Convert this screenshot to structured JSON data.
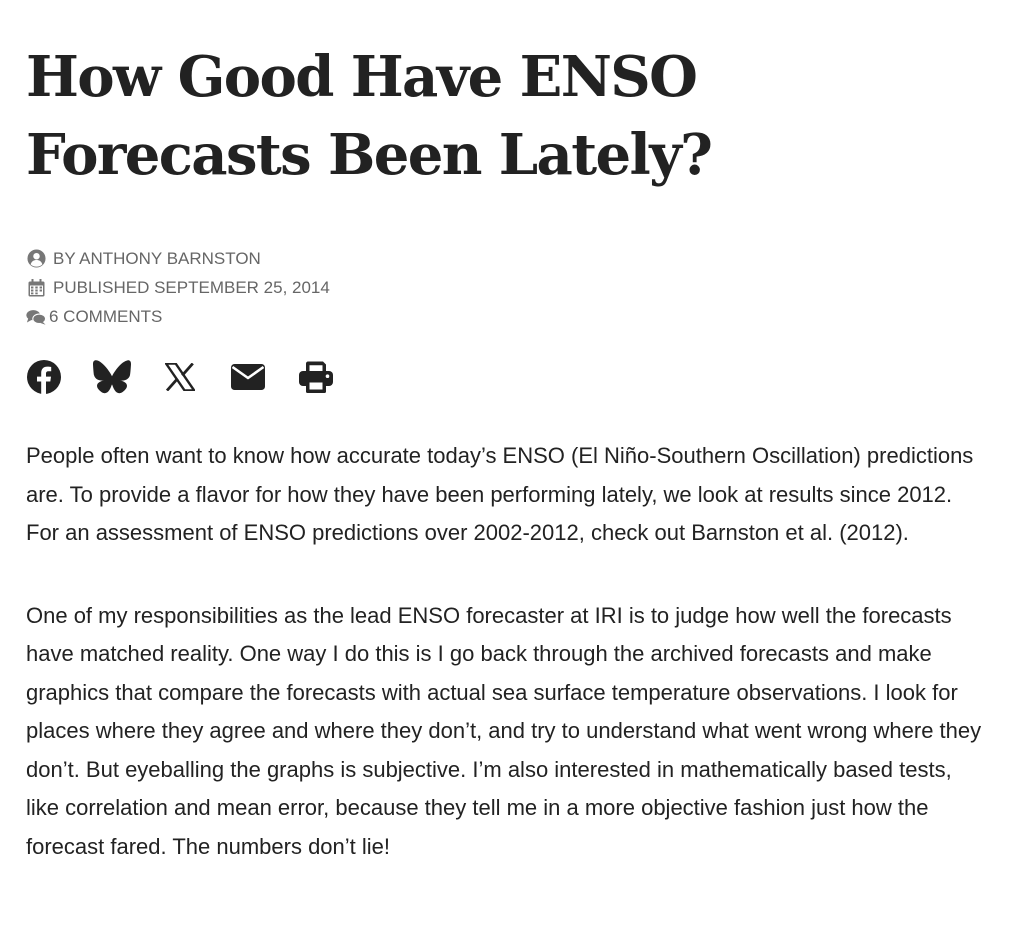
{
  "article": {
    "title": "How Good Have ENSO Forecasts Been Lately?",
    "author": "By Anthony Barnston",
    "published": "Published September 25, 2014",
    "comments": "6 Comments"
  },
  "meta_icons": {
    "author": "user-circle-icon",
    "published": "calendar-icon",
    "comments": "comments-icon"
  },
  "share_icons": [
    "facebook-icon",
    "bluesky-icon",
    "x-icon",
    "email-icon",
    "print-icon"
  ],
  "body": {
    "p1": "People often want to know how accurate today’s ENSO (El Niño-Southern Oscillation) predictions are. To provide a flavor for how they have been performing lately, we look at results since 2012. For an assessment of ENSO predictions over 2002-2012, check out Barnston et al. (2012).",
    "p2": "One of my responsibilities as the lead ENSO forecaster at IRI is to judge how well the forecasts have matched reality. One way I do this is I go back through the archived forecasts and make graphics that compare the forecasts with actual sea surface temperature observations. I look for places where they agree and where they don’t, and try to understand what went wrong where they don’t. But eyeballing the graphs is subjective. I’m also interested in mathematically based tests, like correlation and mean error, because they tell me in a more objective fashion just how the forecast fared. The numbers don’t lie!"
  },
  "colors": {
    "text": "#222222",
    "meta_text": "#666666",
    "icon": "#222222"
  }
}
